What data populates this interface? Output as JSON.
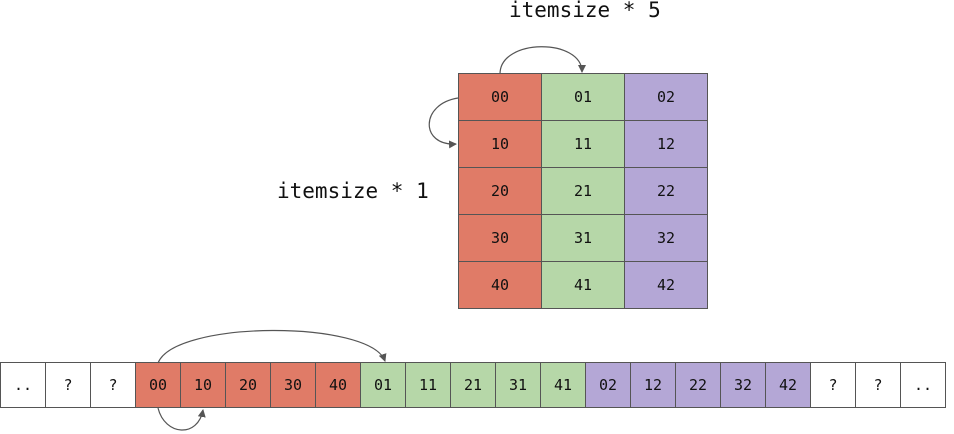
{
  "labels": {
    "column_stride": "itemsize * 5",
    "row_stride": "itemsize * 1"
  },
  "colors": {
    "red": "#e07b67",
    "green": "#b6d7a8",
    "purple": "#b4a7d6",
    "white": "#ffffff",
    "border": "#555555"
  },
  "grid": {
    "rows": [
      [
        "00",
        "01",
        "02"
      ],
      [
        "10",
        "11",
        "12"
      ],
      [
        "20",
        "21",
        "22"
      ],
      [
        "30",
        "31",
        "32"
      ],
      [
        "40",
        "41",
        "42"
      ]
    ],
    "column_colors": [
      "red",
      "green",
      "purple"
    ]
  },
  "memory": [
    {
      "text": "..",
      "color": "white"
    },
    {
      "text": "?",
      "color": "white"
    },
    {
      "text": "?",
      "color": "white"
    },
    {
      "text": "00",
      "color": "red"
    },
    {
      "text": "10",
      "color": "red"
    },
    {
      "text": "20",
      "color": "red"
    },
    {
      "text": "30",
      "color": "red"
    },
    {
      "text": "40",
      "color": "red"
    },
    {
      "text": "01",
      "color": "green"
    },
    {
      "text": "11",
      "color": "green"
    },
    {
      "text": "21",
      "color": "green"
    },
    {
      "text": "31",
      "color": "green"
    },
    {
      "text": "41",
      "color": "green"
    },
    {
      "text": "02",
      "color": "purple"
    },
    {
      "text": "12",
      "color": "purple"
    },
    {
      "text": "22",
      "color": "purple"
    },
    {
      "text": "32",
      "color": "purple"
    },
    {
      "text": "42",
      "color": "purple"
    },
    {
      "text": "?",
      "color": "white"
    },
    {
      "text": "?",
      "color": "white"
    },
    {
      "text": "..",
      "color": "white"
    }
  ]
}
